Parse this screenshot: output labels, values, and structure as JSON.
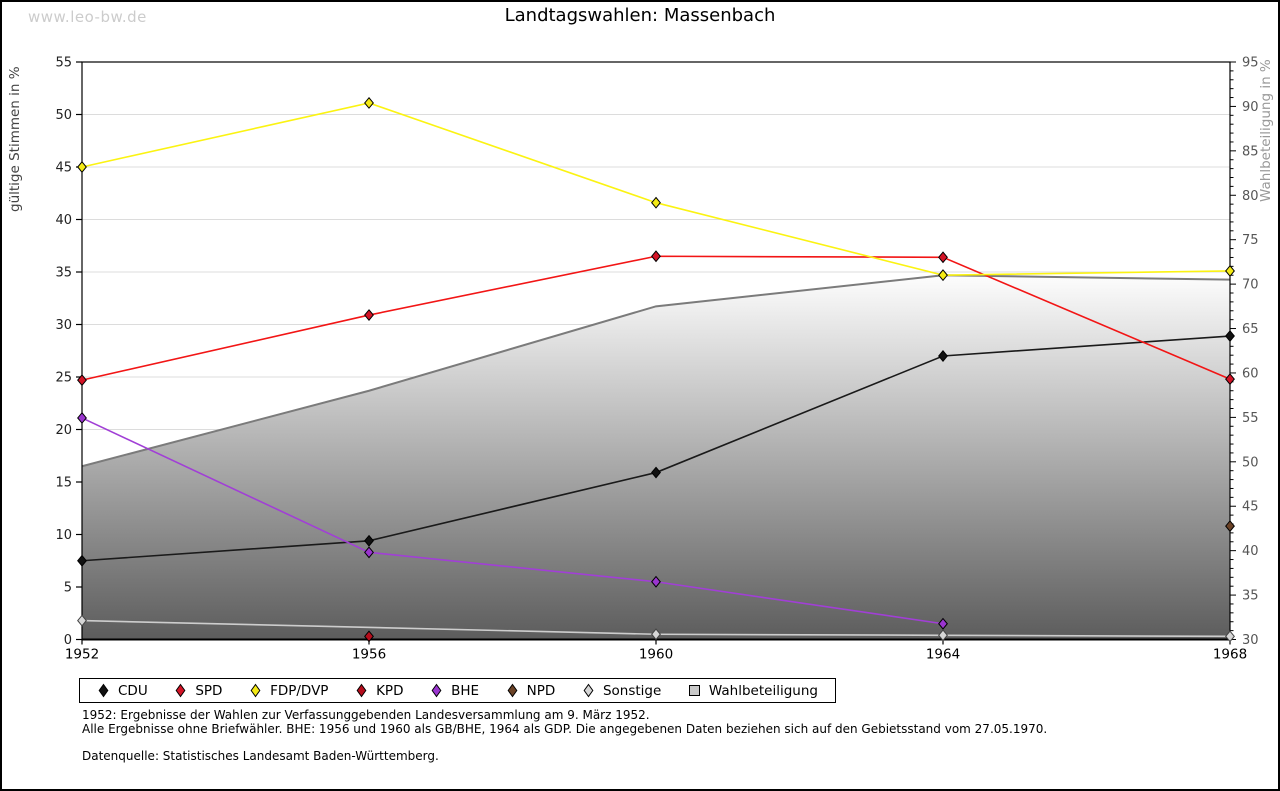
{
  "page": {
    "watermark": "www.leo-bw.de",
    "title": "Landtagswahlen: Massenbach",
    "footnotes": [
      "1952: Ergebnisse der Wahlen zur Verfassunggebenden Landesversammlung am 9. März 1952.",
      "Alle Ergebnisse ohne Briefwähler. BHE: 1956 und 1960 als GB/BHE, 1964 als GDP. Die angegebenen Daten beziehen sich auf den Gebietsstand vom 27.05.1970.",
      "Datenquelle: Statistisches Landesamt Baden-Württemberg."
    ]
  },
  "chart_data": {
    "type": "line",
    "title": "Landtagswahlen: Massenbach",
    "x": [
      1952,
      1956,
      1960,
      1964,
      1968
    ],
    "x_tick_labels": [
      "1952",
      "1956",
      "1960",
      "1964",
      "1968"
    ],
    "left_axis": {
      "label": "gültige Stimmen in %",
      "min": 0,
      "max": 55,
      "step": 5
    },
    "right_axis": {
      "label": "Wahlbeteiligung in %",
      "min": 30,
      "max": 95,
      "step": 5,
      "minor_step": 1
    },
    "grid": true,
    "legend_position": "bottom",
    "colors": {
      "grid": "#dcdcdc",
      "axis": "#000000",
      "area_edge": "#7b7b7b",
      "area_fill_top": "#fdfdfd",
      "area_fill_bottom": "#5c5c5c",
      "left_label": "#444444",
      "right_label": "#999999"
    },
    "series": [
      {
        "name": "CDU",
        "axis": "left",
        "kind": "line",
        "color": "#1a1a1a",
        "marker_fill": "#111111",
        "values": [
          7.5,
          9.4,
          15.9,
          27.0,
          28.9
        ]
      },
      {
        "name": "SPD",
        "axis": "left",
        "kind": "line",
        "color": "#f21515",
        "marker_fill": "#d31326",
        "values": [
          24.7,
          30.9,
          36.5,
          36.4,
          24.8
        ]
      },
      {
        "name": "FDP/DVP",
        "axis": "left",
        "kind": "line",
        "color": "#fbf312",
        "marker_fill": "#f4ea15",
        "values": [
          45.0,
          51.1,
          41.6,
          34.7,
          35.1
        ]
      },
      {
        "name": "KPD",
        "axis": "left",
        "kind": "line",
        "color": "#b50d1c",
        "marker_fill": "#b50d1c",
        "values": [
          null,
          0.3,
          null,
          null,
          null
        ]
      },
      {
        "name": "BHE",
        "axis": "left",
        "kind": "line",
        "color": "#a13fd6",
        "marker_fill": "#9a35cf",
        "values": [
          21.1,
          8.3,
          5.5,
          1.5,
          null
        ]
      },
      {
        "name": "NPD",
        "axis": "left",
        "kind": "line",
        "color": "#6b4226",
        "marker_fill": "#6b4226",
        "values": [
          null,
          null,
          null,
          null,
          10.8
        ]
      },
      {
        "name": "Sonstige",
        "axis": "left",
        "kind": "line",
        "color": "#cdcdcd",
        "marker_fill": "#d6d6d6",
        "marker_stroke": "#444444",
        "values": [
          1.8,
          null,
          0.5,
          0.4,
          0.3
        ]
      },
      {
        "name": "Wahlbeteiligung",
        "axis": "right",
        "kind": "area",
        "color": "#7b7b7b",
        "values": [
          49.5,
          58.0,
          67.5,
          71.0,
          70.5
        ]
      }
    ]
  }
}
